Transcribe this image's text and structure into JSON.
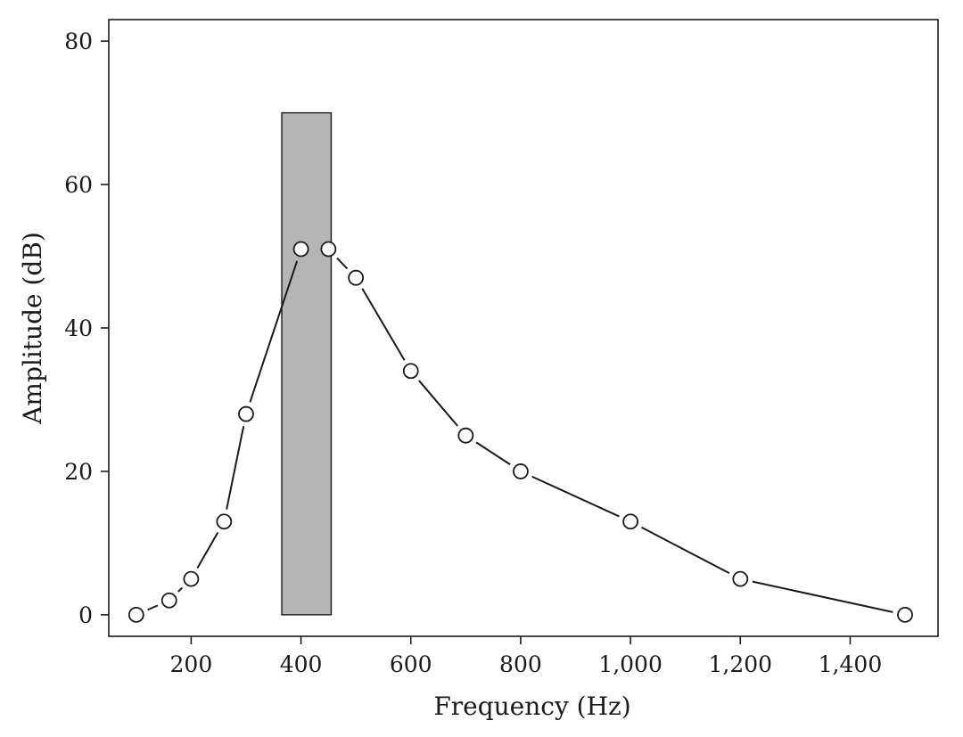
{
  "chart_data": {
    "type": "line",
    "title": "",
    "xlabel": "Frequency (Hz)",
    "ylabel": "Amplitude (dB)",
    "xlim": [
      50,
      1560
    ],
    "ylim": [
      -3,
      83
    ],
    "xticks": [
      200,
      400,
      600,
      800,
      1000,
      1200,
      1400
    ],
    "xtick_labels": [
      "200",
      "400",
      "600",
      "800",
      "1,000",
      "1,200",
      "1,400"
    ],
    "yticks": [
      0,
      20,
      40,
      60,
      80
    ],
    "ytick_labels": [
      "0",
      "20",
      "40",
      "60",
      "80"
    ],
    "grid": false,
    "series": [
      {
        "x": [
          100,
          160,
          200,
          260,
          300,
          400,
          450,
          500,
          600,
          700,
          800,
          1000,
          1200,
          1500
        ],
        "y": [
          0,
          2,
          5,
          13,
          28,
          51,
          51,
          47,
          34,
          25,
          20,
          13,
          5,
          0
        ]
      }
    ],
    "band": {
      "x_start": 365,
      "x_end": 455,
      "y_start": 0,
      "y_end": 70
    },
    "colors": {
      "line": "#1a1a1a",
      "marker_fill": "#ffffff",
      "band_fill": "#b5b5b5"
    }
  }
}
